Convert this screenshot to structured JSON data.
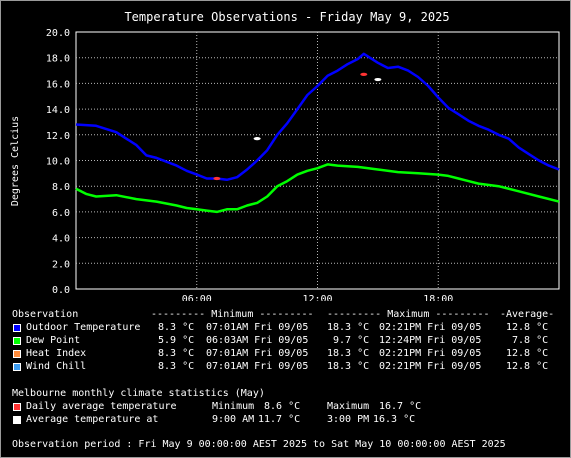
{
  "chart_data": {
    "type": "line",
    "title": "Temperature Observations - Friday May 9, 2025",
    "ylabel": "Degrees Celcius",
    "xlabel": "",
    "ylim": [
      0,
      20
    ],
    "xlim": [
      0,
      24
    ],
    "x_ticks": [
      6,
      12,
      18
    ],
    "x_tick_labels": [
      "06:00",
      "12:00",
      "18:00"
    ],
    "y_ticks": [
      0,
      2,
      4,
      6,
      8,
      10,
      12,
      14,
      16,
      18,
      20
    ],
    "y_tick_labels": [
      "0.0",
      "2.0",
      "4.0",
      "6.0",
      "8.0",
      "10.0",
      "12.0",
      "14.0",
      "16.0",
      "18.0",
      "20.0"
    ],
    "grid": true,
    "series": [
      {
        "name": "Outdoor Temperature",
        "color": "#0000ff",
        "x": [
          0,
          1,
          2,
          3,
          3.5,
          4,
          5,
          5.5,
          6,
          6.5,
          7,
          7.5,
          8,
          8.5,
          9,
          9.5,
          10,
          10.5,
          11,
          11.5,
          12,
          12.5,
          13,
          13.5,
          14,
          14.3,
          15,
          15.5,
          16,
          16.5,
          17,
          17.5,
          18,
          18.5,
          19,
          19.5,
          20,
          20.5,
          21,
          21.5,
          22,
          22.5,
          23,
          23.5,
          24
        ],
        "y": [
          12.8,
          12.7,
          12.2,
          11.2,
          10.4,
          10.2,
          9.6,
          9.2,
          8.9,
          8.6,
          8.6,
          8.5,
          8.7,
          9.3,
          10.0,
          10.8,
          12.0,
          12.9,
          14.0,
          15.1,
          15.8,
          16.6,
          17.0,
          17.5,
          17.9,
          18.3,
          17.6,
          17.2,
          17.3,
          17.0,
          16.5,
          15.8,
          14.9,
          14.1,
          13.6,
          13.1,
          12.7,
          12.4,
          12.0,
          11.7,
          11.0,
          10.5,
          10.0,
          9.6,
          9.3
        ]
      },
      {
        "name": "Dew Point",
        "color": "#00ff00",
        "x": [
          0,
          0.5,
          1,
          2,
          3,
          4,
          5,
          5.5,
          6,
          6.5,
          7,
          7.5,
          8,
          8.5,
          9,
          9.5,
          10,
          10.5,
          11,
          11.5,
          12,
          12.5,
          13,
          14,
          15,
          16,
          17,
          18,
          18.5,
          19,
          19.5,
          20,
          21,
          22,
          23,
          24
        ],
        "y": [
          7.8,
          7.4,
          7.2,
          7.3,
          7.0,
          6.8,
          6.5,
          6.3,
          6.2,
          6.1,
          6.0,
          6.2,
          6.2,
          6.5,
          6.7,
          7.2,
          8.0,
          8.4,
          8.9,
          9.2,
          9.4,
          9.7,
          9.6,
          9.5,
          9.3,
          9.1,
          9.0,
          8.9,
          8.8,
          8.6,
          8.4,
          8.2,
          8.0,
          7.6,
          7.2,
          6.8
        ]
      }
    ],
    "climate_markers": [
      {
        "name": "Daily average temperature",
        "color": "#ff3333",
        "x": 14.3,
        "y": 16.7
      },
      {
        "name": "Daily average temperature",
        "color": "#ff3333",
        "x": 7.0,
        "y": 8.6
      },
      {
        "name": "Average temperature at",
        "color": "#ffffff",
        "x": 9.0,
        "y": 11.7
      },
      {
        "name": "Average temperature at",
        "color": "#ffffff",
        "x": 15.0,
        "y": 16.3
      }
    ]
  },
  "stats": {
    "header": {
      "observation": "Observation",
      "minimum": "--------- Minimum ---------",
      "maximum": "--------- Maximum ---------",
      "average": "-Average-"
    },
    "rows": [
      {
        "label": "Outdoor Temperature",
        "color": "#0000ff",
        "min": "8.3 °C",
        "min_time": "07:01AM Fri 09/05",
        "max": "18.3 °C",
        "max_time": "02:21PM Fri 09/05",
        "avg": "12.8 °C"
      },
      {
        "label": "Dew Point",
        "color": "#00ff00",
        "min": "5.9 °C",
        "min_time": "06:03AM Fri 09/05",
        "max": "9.7 °C",
        "max_time": "12:24PM Fri 09/05",
        "avg": "7.8 °C"
      },
      {
        "label": "Heat Index",
        "color": "#ff8c3c",
        "min": "8.3 °C",
        "min_time": "07:01AM Fri 09/05",
        "max": "18.3 °C",
        "max_time": "02:21PM Fri 09/05",
        "avg": "12.8 °C"
      },
      {
        "label": "Wind Chill",
        "color": "#3c9cf0",
        "min": "8.3 °C",
        "min_time": "07:01AM Fri 09/05",
        "max": "18.3 °C",
        "max_time": "02:21PM Fri 09/05",
        "avg": "12.8 °C"
      }
    ]
  },
  "climate": {
    "heading": "Melbourne monthly climate statistics (May)",
    "rows": [
      {
        "color": "#ff3333",
        "label": "Daily average temperature",
        "a_label": "Minimum",
        "a_val": "8.6 °C",
        "b_label": "Maximum",
        "b_val": "16.7 °C"
      },
      {
        "color": "#ffffff",
        "label": "Average temperature at",
        "a_label": "9:00 AM",
        "a_val": "11.7 °C",
        "b_label": "3:00 PM",
        "b_val": "16.3 °C"
      }
    ]
  },
  "period": "Observation period : Fri May 9 00:00:00 AEST 2025 to Sat May 10 00:00:00 AEST 2025"
}
